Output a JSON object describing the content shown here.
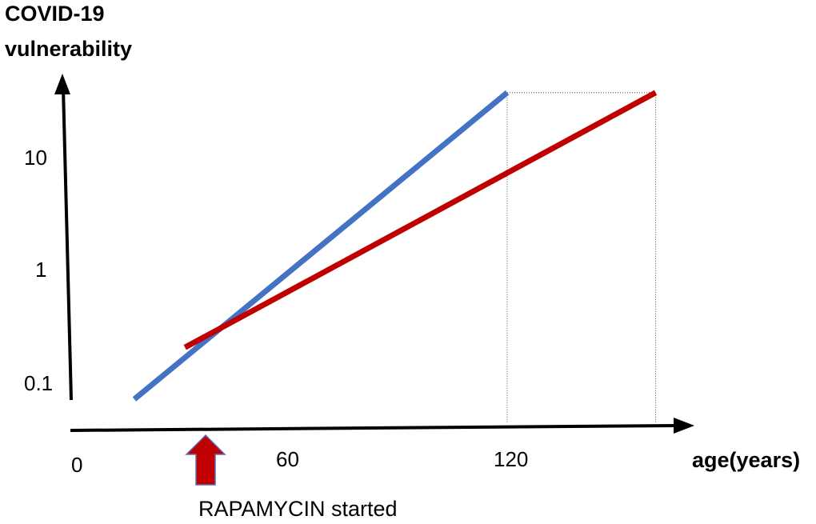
{
  "chart_data": {
    "type": "line",
    "title": "",
    "ylabel": "COVID-19 vulnerability",
    "ylabel_lines": [
      "COVID-19",
      "vulnerability"
    ],
    "xlabel": "age(years)",
    "y_scale": "log",
    "x_ticks": [
      {
        "value": 0,
        "label": "0"
      },
      {
        "value": 60,
        "label": "60"
      },
      {
        "value": 120,
        "label": "120"
      }
    ],
    "y_ticks": [
      {
        "value": 0.1,
        "label": "0.1"
      },
      {
        "value": 1,
        "label": "1"
      },
      {
        "value": 10,
        "label": "10"
      }
    ],
    "series": [
      {
        "color": "#4472c4",
        "points": [
          [
            17,
            0.07
          ],
          [
            120,
            35
          ]
        ]
      },
      {
        "color": "#c00000",
        "points": [
          [
            31,
            0.2
          ],
          [
            161,
            35
          ]
        ]
      }
    ],
    "reference_lines": [
      {
        "x": 120,
        "from_y": 35
      },
      {
        "x": 161,
        "from_y": 35
      }
    ],
    "annotation": {
      "text": "RAPAMYCIN started",
      "x": 36,
      "arrow_color": "#c00000"
    }
  }
}
